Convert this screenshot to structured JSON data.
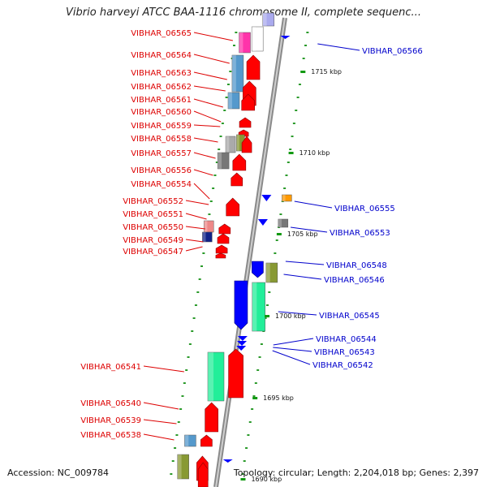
{
  "title": "Vibrio harveyi ATCC BAA-1116 chromosome II, complete sequenc...",
  "accession": "Accession: NC_009784",
  "topology": "Topology: circular; Length: 2,204,018 bp; Genes: 2,397",
  "colors": {
    "backbone": "#999999",
    "forward_label": "#dd0000",
    "reverse_label": "#0000cc",
    "tick": "#119911"
  },
  "ticks": [
    {
      "label": "1715 kbp"
    },
    {
      "label": "1710 kbp"
    },
    {
      "label": "1705 kbp"
    },
    {
      "label": "1700 kbp"
    },
    {
      "label": "1695 kbp"
    },
    {
      "label": "1690 kbp"
    }
  ],
  "left_labels": [
    "VIBHAR_06565",
    "VIBHAR_06564",
    "VIBHAR_06563",
    "VIBHAR_06562",
    "VIBHAR_06561",
    "VIBHAR_06560",
    "VIBHAR_06559",
    "VIBHAR_06558",
    "VIBHAR_06557",
    "VIBHAR_06556",
    "VIBHAR_06554",
    "VIBHAR_06552",
    "VIBHAR_06551",
    "VIBHAR_06550",
    "VIBHAR_06549",
    "VIBHAR_06547",
    "VIBHAR_06541",
    "VIBHAR_06540",
    "VIBHAR_06539",
    "VIBHAR_06538"
  ],
  "right_labels": [
    "VIBHAR_06566",
    "VIBHAR_06555",
    "VIBHAR_06553",
    "VIBHAR_06548",
    "VIBHAR_06546",
    "VIBHAR_06545",
    "VIBHAR_06544",
    "VIBHAR_06543",
    "VIBHAR_06542"
  ]
}
